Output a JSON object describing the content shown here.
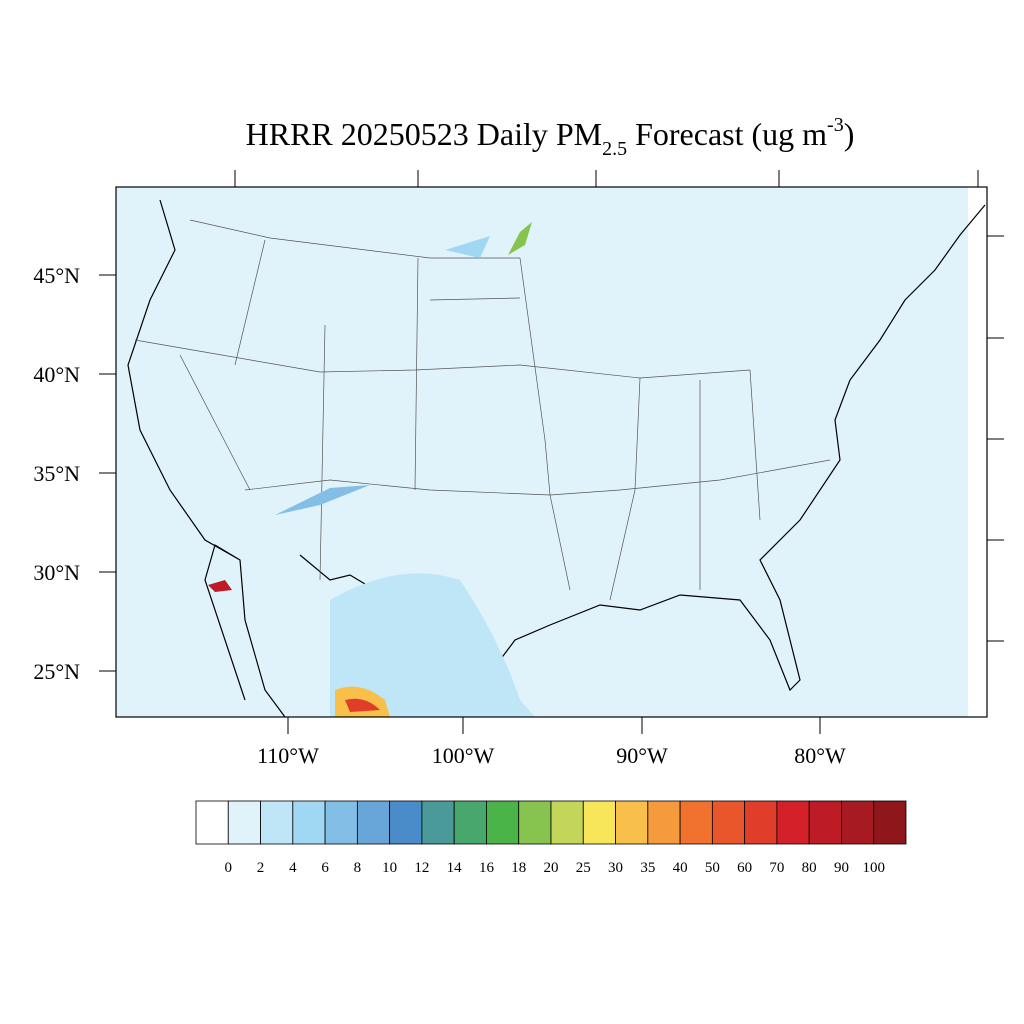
{
  "map": {
    "title": {
      "main": "HRRR 20250523 Daily PM",
      "subscript": "2.5",
      "rest": " Forecast (ug m",
      "superscript": "-3",
      "end": ")"
    },
    "lat_labels": [
      "45°N",
      "40°N",
      "35°N",
      "30°N",
      "25°N"
    ],
    "lon_labels": [
      "110°W",
      "100°W",
      "90°W",
      "80°W"
    ],
    "colorbar": {
      "levels": [
        "0",
        "2",
        "4",
        "6",
        "8",
        "10",
        "12",
        "14",
        "16",
        "18",
        "20",
        "25",
        "30",
        "35",
        "40",
        "50",
        "60",
        "70",
        "80",
        "90",
        "100"
      ],
      "colors": [
        "#ffffff",
        "#e0f3fb",
        "#bfe6f7",
        "#a0d8f4",
        "#83bee6",
        "#68a6da",
        "#4a8bca",
        "#4a9a9a",
        "#48a76d",
        "#4bb449",
        "#86c44f",
        "#c3d65a",
        "#f7e65a",
        "#f8bf4a",
        "#f59a3d",
        "#f1722e",
        "#e9562c",
        "#e03d2a",
        "#d42129",
        "#bd1c26",
        "#a81a22",
        "#8f171c"
      ]
    }
  }
}
